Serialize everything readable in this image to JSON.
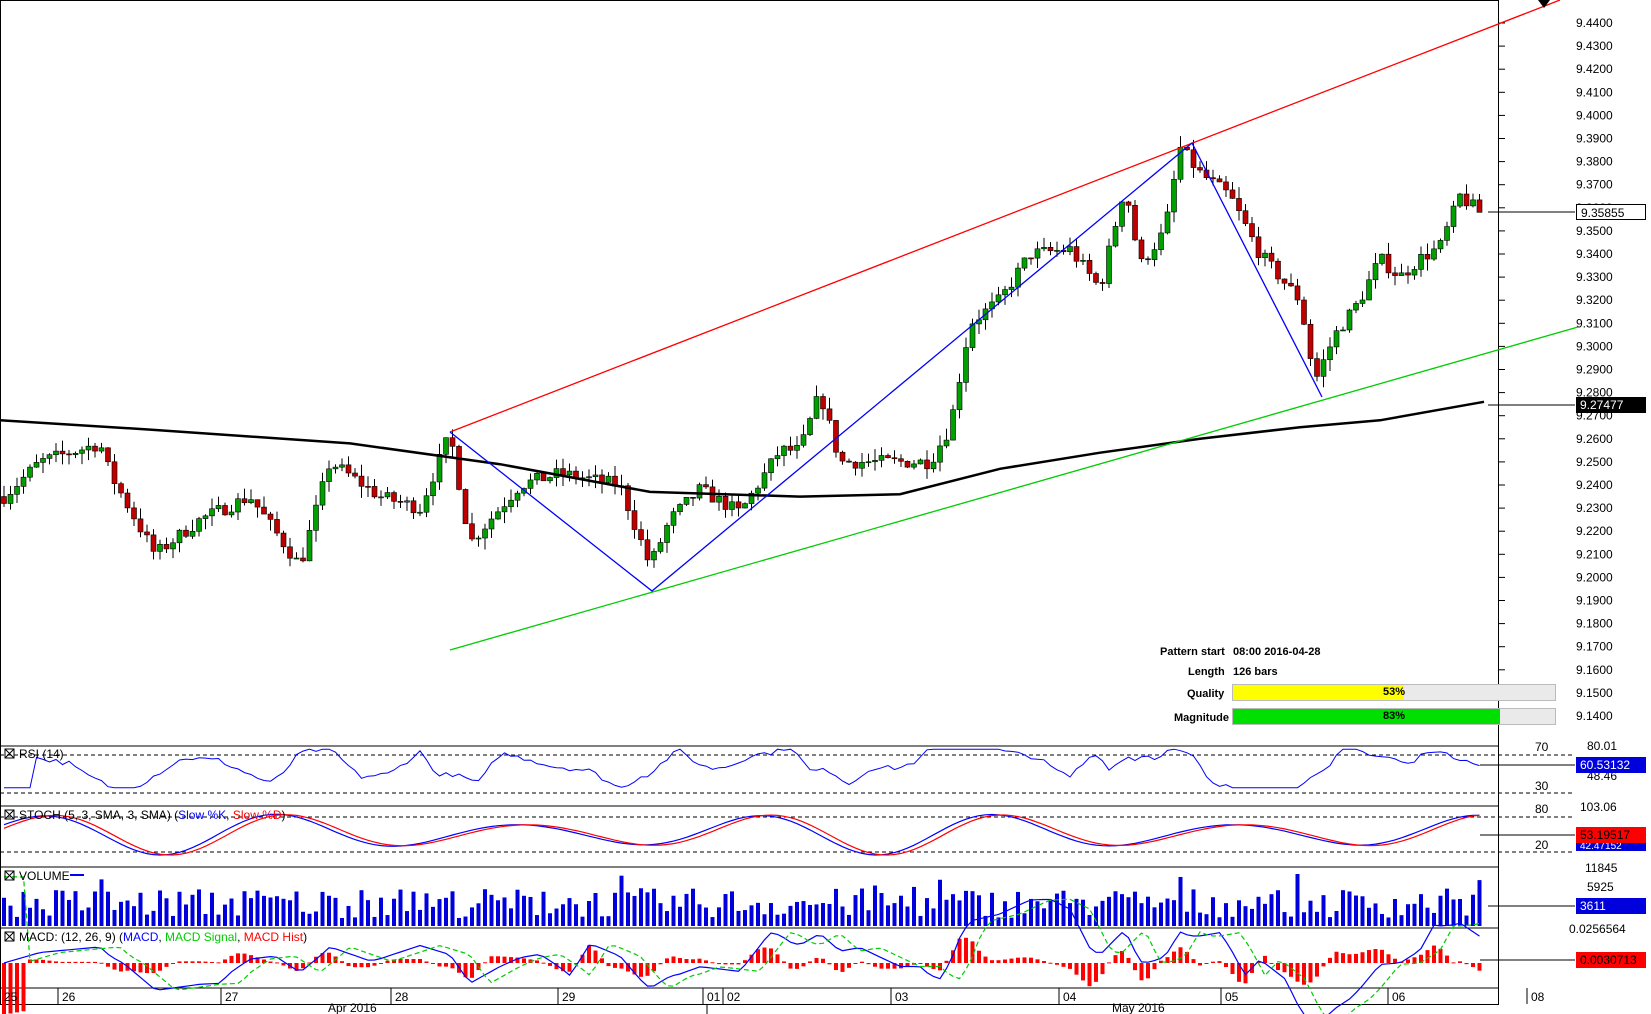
{
  "pattern_info": {
    "start_label": "Pattern start",
    "start_value": "08:00 2016-04-28",
    "length_label": "Length",
    "length_value": "126 bars",
    "quality_label": "Quality",
    "quality_value": "53%",
    "quality_fraction": 0.53,
    "magnitude_label": "Magnitude",
    "magnitude_value": "83%",
    "magnitude_fraction": 0.83
  },
  "price_axis": {
    "ticks": [
      "9.4400",
      "9.4300",
      "9.4200",
      "9.4100",
      "9.4000",
      "9.3900",
      "9.3800",
      "9.3700",
      "9.3600",
      "9.3500",
      "9.3400",
      "9.3300",
      "9.3200",
      "9.3100",
      "9.3000",
      "9.2900",
      "9.2800",
      "9.2700",
      "9.2600",
      "9.2500",
      "9.2400",
      "9.2300",
      "9.2200",
      "9.2100",
      "9.2000",
      "9.1900",
      "9.1800",
      "9.1700",
      "9.1600",
      "9.1500",
      "9.1400"
    ],
    "current_price_tag": "9.35855",
    "ma_tag": "9.27477"
  },
  "panels": {
    "rsi": {
      "title": "RSI (14)",
      "level_high": "70",
      "level_low": "30",
      "max_label": "80.01",
      "min_label": "48.46",
      "tag": "60.53132"
    },
    "stoch": {
      "title_prefix": "STOCH (5, 3, SMA, 3, SMA) (",
      "k_label": "Slow %K",
      "sep": ", ",
      "d_label": "Slow %D",
      "title_suffix": ")",
      "level_high": "80",
      "level_low": "20",
      "max_label": "103.06",
      "tag": "53.19517",
      "tag2": "42.47152"
    },
    "volume": {
      "title": "VOLUME",
      "max_label": "11845",
      "mid_label": "5925",
      "tag": "3611"
    },
    "macd": {
      "title_prefix": "MACD: (12, 26, 9) (",
      "macd_label": "MACD",
      "sep": ", ",
      "signal_label": "MACD Signal",
      "hist_label": "MACD Hist",
      "title_suffix": ")",
      "max_label": "0.0256564",
      "tag": "0.0030713"
    }
  },
  "time_axis": {
    "day_labels": [
      "25",
      "26",
      "27",
      "28",
      "29",
      "01",
      "02",
      "03",
      "04",
      "05",
      "06",
      "08"
    ],
    "month_labels": [
      "Apr 2016",
      "May 2016"
    ]
  },
  "colors": {
    "resistance": "#ff0000",
    "support": "#00cc00",
    "zigzag": "#0000ff",
    "ma": "#000000",
    "bull": "#00a000",
    "bear": "#c00000",
    "quality": "#ffff00",
    "magnitude": "#00e000",
    "volume": "#0000dd",
    "rsi": "#0000ff",
    "stoch_k": "#0000ff",
    "stoch_d": "#ff0000",
    "macd": "#0000ff",
    "macd_signal": "#00cc00",
    "macd_hist": "#ff0000"
  },
  "chart_data": {
    "type": "candlestick",
    "y_range": [
      9.135,
      9.448
    ],
    "key_prices": {
      "resistance_line": {
        "start": 9.264,
        "end": 9.4485
      },
      "support_line": {
        "start": 9.171,
        "end": 9.309
      },
      "zigzag_points": [
        9.264,
        9.196,
        9.388,
        9.278
      ],
      "last_close": 9.35855,
      "ma_last": 9.27477
    }
  }
}
